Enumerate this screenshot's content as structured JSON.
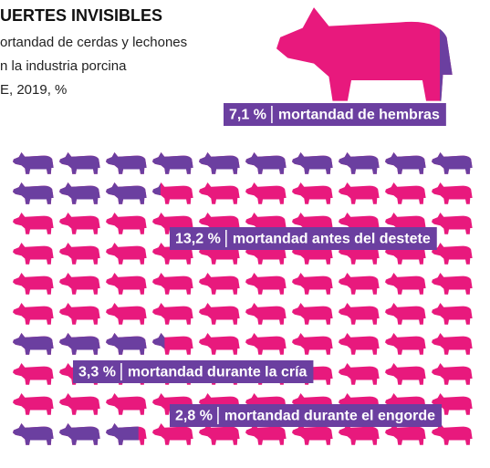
{
  "chart_data": {
    "type": "pictogram",
    "title": "UERTES INVISIBLES",
    "subtitle": [
      "ortandad de cerdas y lechones",
      "n la industria porcina",
      "E, 2019, %"
    ],
    "categories": [
      "mortandad de hembras",
      "mortandad antes del destete",
      "mortandad durante la cría",
      "mortandad durante el engorde"
    ],
    "values": [
      7.1,
      13.2,
      3.3,
      2.8
    ],
    "value_labels": [
      "7,1 %",
      "13,2 %",
      "3,3 %",
      "2,8 %"
    ],
    "color": "#6b3fa0",
    "background_color": "#e8197d"
  }
}
